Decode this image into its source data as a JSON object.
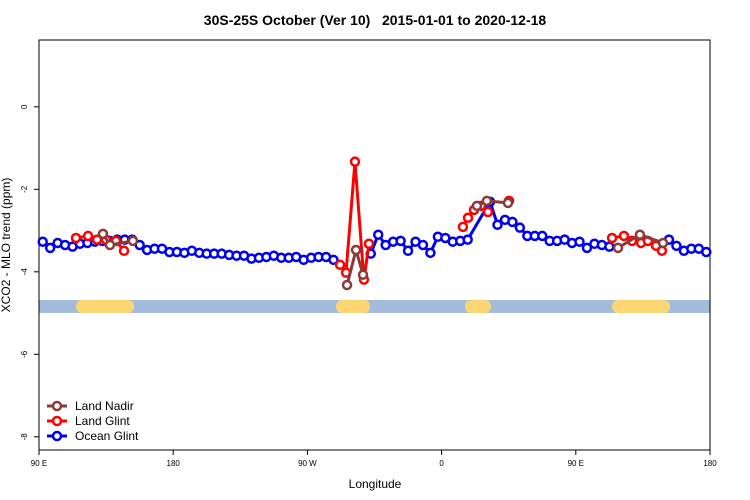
{
  "chart_data": {
    "type": "line",
    "title": "30S-25S October (Ver 10)   2015-01-01 to 2020-12-18",
    "x_label": "Longitude",
    "y_label": "XCO2 - MLO trend (ppm)",
    "xlim": [
      90,
      540
    ],
    "xticks": [
      {
        "value": 90,
        "label": "90 E"
      },
      180,
      {
        "value": 270,
        "label": "90 W"
      },
      {
        "value": 360,
        "label": "0"
      },
      {
        "value": 450,
        "label": "90 E"
      },
      {
        "value": 540,
        "label": "180"
      }
    ],
    "ylim": [
      -8.32,
      1.62
    ],
    "yticks": [
      0,
      -2,
      -4,
      -6,
      -8
    ],
    "legend": "bottom-left",
    "series": [
      {
        "name": "Land Nadir",
        "color": "#8b3a3a",
        "x": [
          132.9,
          137.6,
          153.0,
          null,
          296.6,
          302.6,
          307.3,
          null,
          383.7,
          390.4,
          404.5,
          null,
          478.3,
          493.0,
          508.5
        ],
        "values": [
          -3.08,
          -3.35,
          -3.25,
          null,
          -4.32,
          -3.47,
          -4.07,
          null,
          -2.4,
          -2.28,
          -2.33,
          null,
          -3.42,
          -3.1,
          -3.3
        ]
      },
      {
        "name": "Land Glint",
        "color": "#ff0000",
        "x": [
          114.8,
          122.9,
          128.9,
          134.9,
          141.6,
          147.0,
          null,
          291.9,
          295.9,
          301.9,
          307.9,
          311.3,
          null,
          374.3,
          377.7,
          381.7,
          386.4,
          391.1,
          null,
          405.2,
          null,
          474.3,
          482.3,
          487.7,
          493.7,
          498.4,
          503.8,
          507.8
        ],
        "values": [
          -3.18,
          -3.13,
          -3.22,
          -3.22,
          -3.25,
          -3.49,
          null,
          -3.83,
          -4.02,
          -1.33,
          -4.19,
          -3.32,
          null,
          -2.91,
          -2.69,
          -2.5,
          -2.4,
          -2.55,
          null,
          -2.28,
          null,
          -3.18,
          -3.13,
          -3.25,
          -3.3,
          -3.25,
          -3.37,
          -3.49
        ]
      },
      {
        "name": "Ocean Glint",
        "color": "#0000ee",
        "x": [
          92.5,
          97.5,
          102.5,
          107.5,
          112.5,
          117.5,
          122.5,
          127.5,
          132.5,
          137.5,
          142.5,
          147.5,
          152.5,
          157.5,
          162.5,
          167.5,
          172.5,
          177.5,
          182.5,
          187.5,
          192.5,
          197.5,
          202.5,
          207.5,
          212.5,
          217.5,
          222.5,
          227.5,
          232.5,
          237.5,
          242.5,
          247.5,
          252.5,
          257.5,
          262.5,
          267.5,
          272.5,
          277.5,
          282.5,
          287.5,
          null,
          312.5,
          317.5,
          322.5,
          327.5,
          332.5,
          337.5,
          342.5,
          347.5,
          352.5,
          357.5,
          362.5,
          367.5,
          372.5,
          377.5,
          392.5,
          397.5,
          402.5,
          407.5,
          412.5,
          417.5,
          422.5,
          427.5,
          432.5,
          437.5,
          442.5,
          447.5,
          452.5,
          457.5,
          462.5,
          467.5,
          472.5,
          null,
          512.5,
          517.5,
          522.5,
          527.5,
          532.5,
          537.5
        ],
        "values": [
          -3.27,
          -3.42,
          -3.3,
          -3.35,
          -3.39,
          -3.32,
          -3.3,
          -3.27,
          -3.25,
          -3.25,
          -3.22,
          -3.22,
          -3.22,
          -3.35,
          -3.47,
          -3.44,
          -3.44,
          -3.52,
          -3.52,
          -3.54,
          -3.49,
          -3.54,
          -3.56,
          -3.56,
          -3.56,
          -3.59,
          -3.61,
          -3.61,
          -3.68,
          -3.66,
          -3.64,
          -3.61,
          -3.66,
          -3.66,
          -3.64,
          -3.71,
          -3.66,
          -3.64,
          -3.64,
          -3.71,
          null,
          -3.56,
          -3.1,
          -3.35,
          -3.27,
          -3.25,
          -3.49,
          -3.27,
          -3.35,
          -3.54,
          -3.15,
          -3.18,
          -3.27,
          -3.25,
          -3.22,
          -2.3,
          -2.86,
          -2.74,
          -2.79,
          -2.93,
          -3.13,
          -3.13,
          -3.13,
          -3.25,
          -3.25,
          -3.22,
          -3.3,
          -3.27,
          -3.42,
          -3.32,
          -3.35,
          -3.39,
          null,
          -3.22,
          -3.37,
          -3.49,
          -3.44,
          -3.44,
          -3.52
        ]
      }
    ]
  }
}
